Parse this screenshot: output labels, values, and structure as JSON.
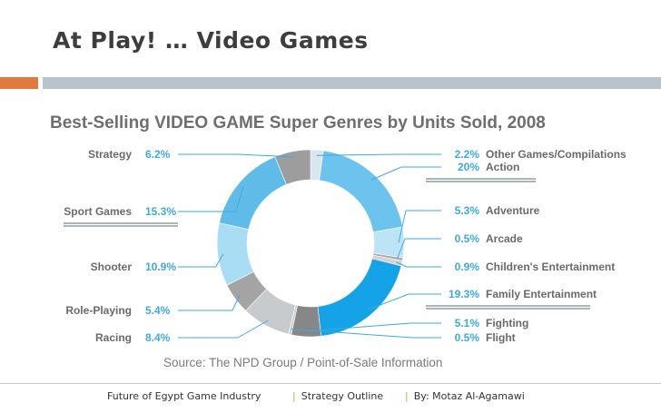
{
  "slide": {
    "title": "At Play! … Video Games"
  },
  "chart_data": {
    "type": "pie",
    "donut": true,
    "title": "Best-Selling VIDEO GAME Super Genres by Units Sold, 2008",
    "source": "Source: The NPD Group / Point-of-Sale Information",
    "unit": "%",
    "slices": [
      {
        "name": "Other Games/Compilations",
        "label": "2.2%",
        "value": 2.2,
        "color": "#d9e6ee"
      },
      {
        "name": "Action",
        "label": "20%",
        "value": 20,
        "color": "#6cc3ee"
      },
      {
        "name": "Adventure",
        "label": "5.3%",
        "value": 5.3,
        "color": "#bde4f6"
      },
      {
        "name": "Arcade",
        "label": "0.5%",
        "value": 0.5,
        "color": "#a9a9a9"
      },
      {
        "name": "Children's Entertainment",
        "label": "0.9%",
        "value": 0.9,
        "color": "#d4d4d4"
      },
      {
        "name": "Family Entertainment",
        "label": "19.3%",
        "value": 19.3,
        "color": "#14a3e6"
      },
      {
        "name": "Fighting",
        "label": "5.1%",
        "value": 5.1,
        "color": "#878787"
      },
      {
        "name": "Flight",
        "label": "0.5%",
        "value": 0.5,
        "color": "#d0d0d0"
      },
      {
        "name": "Racing",
        "label": "8.4%",
        "value": 8.4,
        "color": "#c8cbce"
      },
      {
        "name": "Role-Playing",
        "label": "5.4%",
        "value": 5.4,
        "color": "#a4a4a4"
      },
      {
        "name": "Shooter",
        "label": "10.9%",
        "value": 10.9,
        "color": "#a9dcf5"
      },
      {
        "name": "Sport Games",
        "label": "15.3%",
        "value": 15.3,
        "color": "#5fbce9"
      },
      {
        "name": "Strategy",
        "label": "6.2%",
        "value": 6.2,
        "color": "#9d9d9d"
      }
    ]
  },
  "footer": {
    "left": "Future of Egypt Game Industry",
    "middle": "Strategy Outline",
    "right": "By: Motaz Al-Agamawi",
    "separator": "|"
  }
}
